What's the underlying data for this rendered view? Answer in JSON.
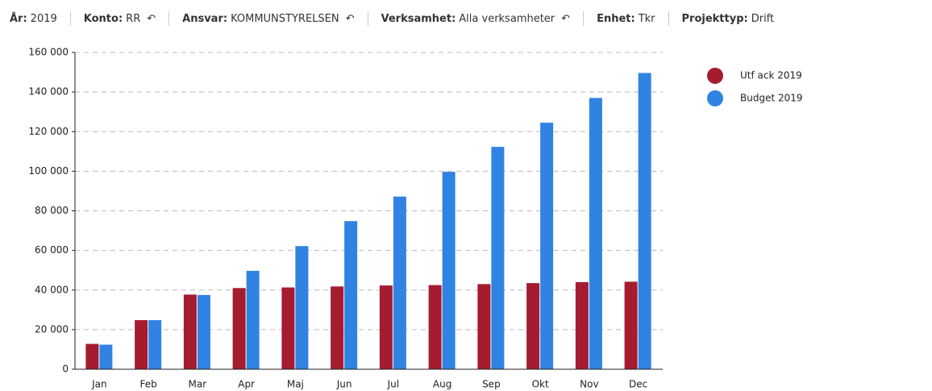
{
  "filters": [
    {
      "label": "År:",
      "value": "2019",
      "reset": false
    },
    {
      "label": "Konto:",
      "value": "RR",
      "reset": true
    },
    {
      "label": "Ansvar:",
      "value": "KOMMUNSTYRELSEN",
      "reset": true
    },
    {
      "label": "Verksamhet:",
      "value": "Alla verksamheter",
      "reset": true
    },
    {
      "label": "Enhet:",
      "value": "Tkr",
      "reset": false
    },
    {
      "label": "Projekttyp:",
      "value": "Drift",
      "reset": false
    }
  ],
  "chart_data": {
    "type": "bar",
    "categories": [
      "Jan",
      "Feb",
      "Mar",
      "Apr",
      "Maj",
      "Jun",
      "Jul",
      "Aug",
      "Sep",
      "Okt",
      "Nov",
      "Dec"
    ],
    "series": [
      {
        "name": "Utf ack 2019",
        "color": "#a51b30",
        "values": [
          12800,
          24800,
          37700,
          41000,
          41300,
          41800,
          42300,
          42500,
          43000,
          43500,
          44000,
          44200
        ]
      },
      {
        "name": "Budget 2019",
        "color": "#3083e3",
        "values": [
          12400,
          24800,
          37500,
          49700,
          62200,
          74800,
          87200,
          99700,
          112300,
          124500,
          137000,
          149600
        ]
      }
    ],
    "ylim": [
      0,
      160000
    ],
    "yticks": [
      0,
      {
        "value": 20000,
        "label": "20 000"
      },
      {
        "value": 40000,
        "label": "40 000"
      },
      {
        "value": 60000,
        "label": "60 000"
      },
      {
        "value": 80000,
        "label": "80 000"
      },
      {
        "value": 100000,
        "label": "100 000"
      },
      {
        "value": 120000,
        "label": "120 000"
      },
      {
        "value": 140000,
        "label": "140 000"
      },
      {
        "value": 160000,
        "label": "160 000"
      }
    ],
    "grid": true,
    "legend": "right"
  }
}
